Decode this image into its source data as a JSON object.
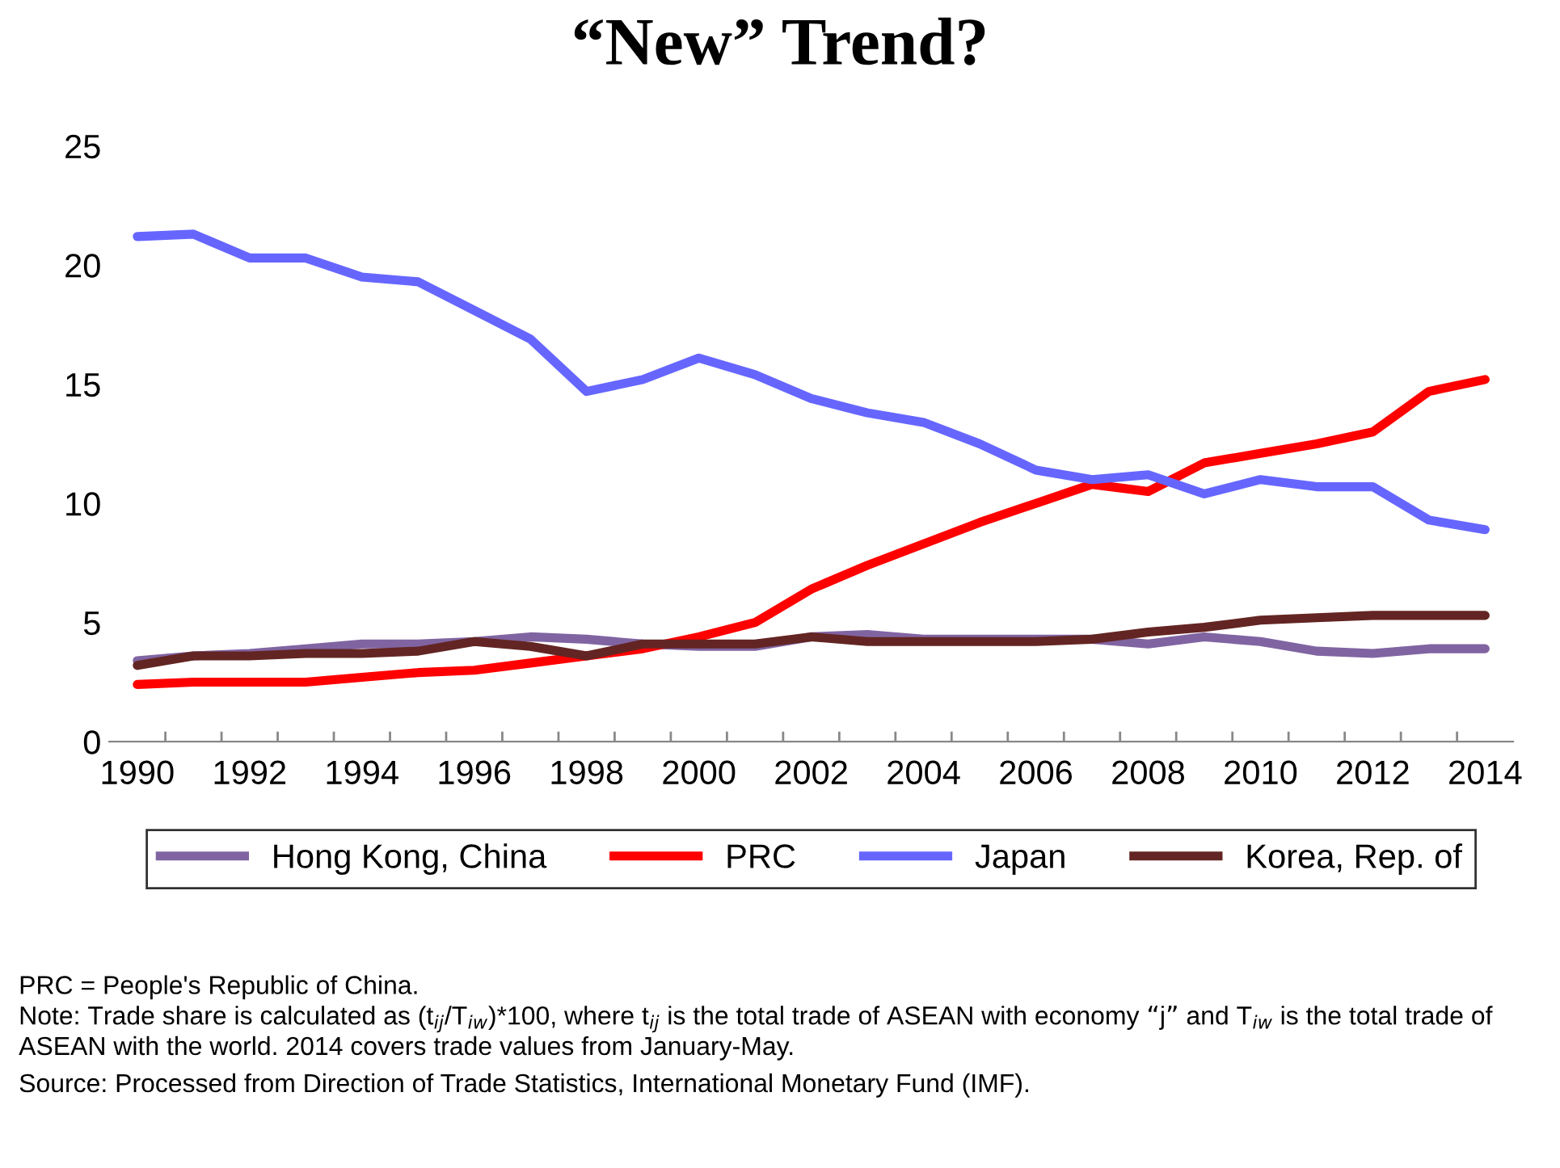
{
  "chart_data": {
    "type": "line",
    "title": "“New” Trend?",
    "categories": [
      "1990",
      null,
      "1992",
      null,
      "1994",
      null,
      "1996",
      null,
      "1998",
      null,
      "2000",
      null,
      "2002",
      null,
      "2004",
      null,
      "2006",
      null,
      "2008",
      null,
      "2010",
      null,
      "2012",
      null,
      "2014"
    ],
    "series": [
      {
        "name": "Hong Kong, China",
        "color": "#8064a2",
        "values": [
          3.4,
          3.6,
          3.7,
          3.9,
          4.1,
          4.1,
          4.2,
          4.4,
          4.3,
          4.1,
          4.0,
          4.0,
          4.4,
          4.5,
          4.3,
          4.3,
          4.3,
          4.3,
          4.1,
          4.4,
          4.2,
          3.8,
          3.7,
          3.9,
          3.9
        ]
      },
      {
        "name": "PRC",
        "color": "#ff0000",
        "values": [
          2.4,
          2.5,
          2.5,
          2.5,
          2.7,
          2.9,
          3.0,
          3.3,
          3.6,
          3.9,
          4.4,
          5.0,
          6.4,
          7.4,
          8.3,
          9.2,
          10.0,
          10.8,
          10.5,
          11.7,
          12.1,
          12.5,
          13.0,
          14.7,
          15.2
        ]
      },
      {
        "name": "Japan",
        "color": "#6666ff",
        "values": [
          21.2,
          21.3,
          20.3,
          20.3,
          19.5,
          19.3,
          18.1,
          16.9,
          14.7,
          15.2,
          16.1,
          15.4,
          14.4,
          13.8,
          13.4,
          12.5,
          11.4,
          11.0,
          11.2,
          10.4,
          11.0,
          10.7,
          10.7,
          9.3,
          8.9
        ]
      },
      {
        "name": "Korea, Rep. of",
        "color": "#632523",
        "values": [
          3.2,
          3.6,
          3.6,
          3.7,
          3.7,
          3.8,
          4.2,
          4.0,
          3.6,
          4.1,
          4.1,
          4.1,
          4.4,
          4.2,
          4.2,
          4.2,
          4.2,
          4.3,
          4.6,
          4.8,
          5.1,
          5.2,
          5.3,
          5.3,
          5.3
        ]
      }
    ],
    "ylim": [
      0,
      25
    ],
    "yticks": [
      0,
      5,
      10,
      15,
      20,
      25
    ],
    "grid": false,
    "legend": "bottom",
    "marker": "none",
    "line_style": "solid",
    "annotations": [
      "PRC = People's Republic of China.",
      "Note: Trade share is calculated as (t$_{ij}$/T$_{iw}$)*100, where t$_{ij}$ is the total trade of ASEAN with economy “j” and T$_{iw}$ is the total trade of ASEAN with the world. 2014 covers trade values from January-May.",
      "Source: Processed from Direction of Trade Statistics, International Monetary Fund (IMF)."
    ]
  }
}
